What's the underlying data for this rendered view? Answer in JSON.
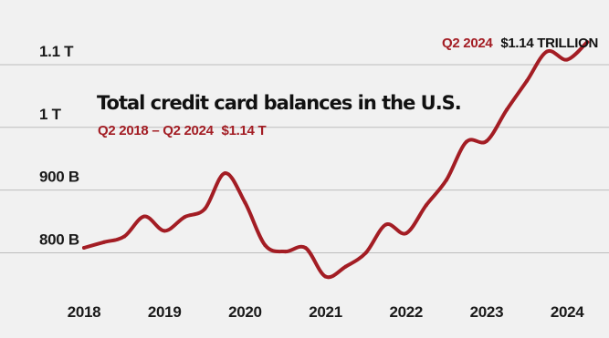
{
  "colors": {
    "background": "#f1f1f1",
    "line": "#a31d24",
    "accent_text": "#a31d24",
    "text": "#111111",
    "grid": "#bdbdbd"
  },
  "chart_data": {
    "type": "line",
    "title": "Total credit card balances in the U.S.",
    "subtitle": {
      "range": "Q2 2018 – Q2 2024",
      "value": "$1.14 T"
    },
    "annotation": {
      "period": "Q2 2024",
      "value": "$1.14 TRILLION"
    },
    "xlabel": "",
    "ylabel": "",
    "xlim": [
      2018,
      2024.35
    ],
    "ylim": [
      760,
      1145
    ],
    "x_ticks": [
      {
        "value": 2018,
        "label": "2018"
      },
      {
        "value": 2019,
        "label": "2019"
      },
      {
        "value": 2020,
        "label": "2020"
      },
      {
        "value": 2021,
        "label": "2021"
      },
      {
        "value": 2022,
        "label": "2022"
      },
      {
        "value": 2023,
        "label": "2023"
      },
      {
        "value": 2024,
        "label": "2024"
      }
    ],
    "y_ticks": [
      {
        "value": 800,
        "label": "800 B"
      },
      {
        "value": 900,
        "label": "900 B"
      },
      {
        "value": 1000,
        "label": "1 T"
      },
      {
        "value": 1100,
        "label": "1.1 T"
      }
    ],
    "grid": true,
    "units": "billions of dollars",
    "series": [
      {
        "x": [
          2018.0,
          2018.25,
          2018.5,
          2018.75,
          2019.0,
          2019.25,
          2019.5,
          2019.75,
          2020.0,
          2020.25,
          2020.5,
          2020.75,
          2021.0,
          2021.25,
          2021.5,
          2021.75,
          2022.0,
          2022.25,
          2022.5,
          2022.75,
          2023.0,
          2023.25,
          2023.5,
          2023.75,
          2024.0,
          2024.25
        ],
        "values": [
          808,
          817,
          826,
          858,
          835,
          857,
          870,
          927,
          880,
          812,
          802,
          808,
          762,
          778,
          800,
          845,
          831,
          876,
          916,
          977,
          978,
          1028,
          1074,
          1121,
          1108,
          1136
        ]
      }
    ]
  }
}
